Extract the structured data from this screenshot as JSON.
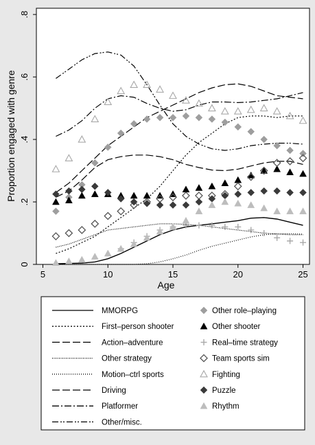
{
  "chart_data": {
    "type": "line",
    "xlabel": "Age",
    "ylabel": "Proportion engaged with genre",
    "xlim": [
      4.5,
      25.5
    ],
    "ylim": [
      0,
      0.82
    ],
    "xticks": [
      5,
      10,
      15,
      20,
      25
    ],
    "xtick_labels": [
      "5",
      "10",
      "15",
      "20",
      "25"
    ],
    "yticks": [
      0,
      0.2,
      0.4,
      0.6,
      0.8
    ],
    "ytick_labels": [
      "0",
      ".2",
      ".4",
      ".6",
      ".8"
    ],
    "grid": false,
    "legend_position": "bottom",
    "series": [
      {
        "name": "MMORPG",
        "kind": "line",
        "dash": "solid",
        "x": [
          6,
          7,
          8,
          9,
          10,
          11,
          12,
          13,
          14,
          15,
          16,
          17,
          18,
          19,
          20,
          21,
          22,
          23,
          24,
          25
        ],
        "y": [
          0.002,
          0.003,
          0.004,
          0.008,
          0.018,
          0.035,
          0.055,
          0.075,
          0.095,
          0.11,
          0.12,
          0.125,
          0.13,
          0.135,
          0.14,
          0.148,
          0.15,
          0.145,
          0.135,
          0.125
        ]
      },
      {
        "name": "First-person shooter",
        "kind": "line",
        "dash": "dotted",
        "x": [
          6,
          7,
          8,
          9,
          10,
          11,
          12,
          13,
          14,
          15,
          16,
          17,
          18,
          19,
          20,
          21,
          22,
          23,
          24,
          25
        ],
        "y": [
          0.035,
          0.05,
          0.07,
          0.09,
          0.12,
          0.15,
          0.18,
          0.21,
          0.25,
          0.3,
          0.35,
          0.39,
          0.42,
          0.45,
          0.47,
          0.475,
          0.475,
          0.47,
          0.475,
          0.475
        ]
      },
      {
        "name": "Action-adventure",
        "kind": "line",
        "dash": "longdash",
        "x": [
          6,
          7,
          8,
          9,
          10,
          11,
          12,
          13,
          14,
          15,
          16,
          17,
          18,
          19,
          20,
          21,
          22,
          23,
          24,
          25
        ],
        "y": [
          0.23,
          0.26,
          0.3,
          0.34,
          0.38,
          0.41,
          0.44,
          0.47,
          0.49,
          0.51,
          0.53,
          0.55,
          0.565,
          0.575,
          0.578,
          0.57,
          0.555,
          0.54,
          0.535,
          0.53
        ]
      },
      {
        "name": "Other strategy",
        "kind": "line",
        "dash": "fine-dotted",
        "x": [
          6,
          7,
          8,
          9,
          10,
          11,
          12,
          13,
          14,
          15,
          16,
          17,
          18,
          19,
          20,
          21,
          22,
          23,
          24,
          25
        ],
        "y": [
          0.055,
          0.065,
          0.08,
          0.095,
          0.11,
          0.115,
          0.12,
          0.125,
          0.13,
          0.13,
          0.128,
          0.125,
          0.12,
          0.115,
          0.11,
          0.105,
          0.1,
          0.097,
          0.095,
          0.095
        ]
      },
      {
        "name": "Motion–ctrl sports",
        "kind": "line",
        "dash": "sparse-dotted",
        "x": [
          6,
          7,
          8,
          9,
          10,
          11,
          12,
          13,
          14,
          15,
          16,
          17,
          18,
          19,
          20,
          21,
          22,
          23,
          24,
          25
        ],
        "y": [
          0,
          0,
          0,
          0,
          0,
          0,
          0,
          0.002,
          0.008,
          0.018,
          0.03,
          0.045,
          0.058,
          0.068,
          0.078,
          0.088,
          0.095,
          0.098,
          0.098,
          0.097
        ]
      },
      {
        "name": "Driving",
        "kind": "line",
        "dash": "longdash",
        "x": [
          6,
          7,
          8,
          9,
          10,
          11,
          12,
          13,
          14,
          15,
          16,
          17,
          18,
          19,
          20,
          21,
          22,
          23,
          24,
          25
        ],
        "y": [
          0.215,
          0.235,
          0.27,
          0.31,
          0.335,
          0.345,
          0.35,
          0.35,
          0.345,
          0.335,
          0.32,
          0.31,
          0.302,
          0.3,
          0.305,
          0.315,
          0.325,
          0.33,
          0.33,
          0.32
        ]
      },
      {
        "name": "Platformer",
        "kind": "line",
        "dash": "dashdot",
        "x": [
          6,
          7,
          8,
          9,
          10,
          11,
          12,
          13,
          14,
          15,
          16,
          17,
          18,
          19,
          20,
          21,
          22,
          23,
          24,
          25
        ],
        "y": [
          0.41,
          0.43,
          0.46,
          0.5,
          0.53,
          0.54,
          0.535,
          0.515,
          0.5,
          0.49,
          0.495,
          0.51,
          0.52,
          0.52,
          0.518,
          0.52,
          0.525,
          0.53,
          0.54,
          0.55
        ]
      },
      {
        "name": "Other/misc.",
        "kind": "line",
        "dash": "dashdotdot",
        "x": [
          6,
          7,
          8,
          9,
          10,
          11,
          12,
          13,
          14,
          15,
          16,
          17,
          18,
          19,
          20,
          21,
          22,
          23,
          24,
          25
        ],
        "y": [
          0.595,
          0.625,
          0.655,
          0.675,
          0.68,
          0.67,
          0.635,
          0.575,
          0.51,
          0.45,
          0.41,
          0.385,
          0.37,
          0.365,
          0.37,
          0.38,
          0.385,
          0.388,
          0.388,
          0.385
        ]
      },
      {
        "name": "Other role–playing",
        "kind": "marker",
        "marker": "diamond-filled",
        "color": "#9e9e9e",
        "x": [
          6,
          7,
          8,
          9,
          10,
          11,
          12,
          13,
          14,
          15,
          16,
          17,
          18,
          19,
          20,
          21,
          22,
          23,
          24,
          25
        ],
        "y": [
          0.17,
          0.215,
          0.255,
          0.325,
          0.375,
          0.42,
          0.45,
          0.465,
          0.47,
          0.47,
          0.475,
          0.47,
          0.465,
          0.455,
          0.44,
          0.425,
          0.4,
          0.38,
          0.365,
          0.355
        ]
      },
      {
        "name": "Other shooter",
        "kind": "marker",
        "marker": "triangle-filled",
        "color": "#000000",
        "x": [
          6,
          7,
          8,
          9,
          10,
          11,
          12,
          13,
          14,
          15,
          16,
          17,
          18,
          19,
          20,
          21,
          22,
          23,
          24,
          25
        ],
        "y": [
          0.2,
          0.205,
          0.22,
          0.225,
          0.225,
          0.22,
          0.22,
          0.22,
          0.22,
          0.225,
          0.24,
          0.245,
          0.25,
          0.26,
          0.27,
          0.285,
          0.3,
          0.305,
          0.295,
          0.29
        ]
      },
      {
        "name": "Real–time strategy",
        "kind": "marker",
        "marker": "plus",
        "color": "#a8a8a8",
        "x": [
          11,
          12,
          13,
          14,
          15,
          16,
          17,
          18,
          19,
          20,
          21,
          22,
          23,
          24,
          25
        ],
        "y": [
          0.05,
          0.07,
          0.09,
          0.11,
          0.12,
          0.125,
          0.125,
          0.125,
          0.12,
          0.12,
          0.11,
          0.1,
          0.085,
          0.075,
          0.07
        ]
      },
      {
        "name": "Team sports sim",
        "kind": "marker",
        "marker": "diamond-hollow",
        "color": "#555555",
        "x": [
          6,
          7,
          8,
          9,
          10,
          11,
          12,
          13,
          14,
          15,
          16,
          17,
          18,
          19,
          20,
          21,
          22,
          23,
          24,
          25
        ],
        "y": [
          0.09,
          0.1,
          0.11,
          0.13,
          0.155,
          0.17,
          0.19,
          0.2,
          0.21,
          0.215,
          0.22,
          0.22,
          0.22,
          0.225,
          0.25,
          0.28,
          0.3,
          0.325,
          0.33,
          0.34
        ]
      },
      {
        "name": "Fighting",
        "kind": "marker",
        "marker": "triangle-hollow",
        "color": "#a8a8a8",
        "x": [
          6,
          7,
          8,
          9,
          10,
          11,
          12,
          13,
          14,
          15,
          16,
          17,
          18,
          19,
          20,
          21,
          22,
          23,
          24,
          25
        ],
        "y": [
          0.305,
          0.34,
          0.4,
          0.465,
          0.52,
          0.555,
          0.575,
          0.575,
          0.56,
          0.54,
          0.525,
          0.515,
          0.5,
          0.49,
          0.49,
          0.495,
          0.5,
          0.49,
          0.475,
          0.46
        ]
      },
      {
        "name": "Puzzle",
        "kind": "marker",
        "marker": "diamond-filled",
        "color": "#3a3a3a",
        "x": [
          6,
          7,
          8,
          9,
          10,
          11,
          12,
          13,
          14,
          15,
          16,
          17,
          18,
          19,
          20,
          21,
          22,
          23,
          24,
          25
        ],
        "y": [
          0.225,
          0.235,
          0.24,
          0.25,
          0.23,
          0.21,
          0.2,
          0.195,
          0.19,
          0.19,
          0.19,
          0.2,
          0.21,
          0.22,
          0.225,
          0.23,
          0.235,
          0.235,
          0.23,
          0.23
        ]
      },
      {
        "name": "Rhythm",
        "kind": "marker",
        "marker": "triangle-filled",
        "color": "#bdbdbd",
        "x": [
          6,
          7,
          8,
          9,
          10,
          11,
          12,
          13,
          14,
          15,
          16,
          17,
          18,
          19,
          20,
          21,
          22,
          23,
          24,
          25
        ],
        "y": [
          0.005,
          0.01,
          0.015,
          0.025,
          0.035,
          0.05,
          0.065,
          0.085,
          0.105,
          0.12,
          0.14,
          0.17,
          0.19,
          0.2,
          0.195,
          0.19,
          0.18,
          0.17,
          0.17,
          0.17
        ]
      }
    ]
  },
  "legend": {
    "items": [
      {
        "label": "MMORPG"
      },
      {
        "label": "Other role–playing"
      },
      {
        "label": "First–person shooter"
      },
      {
        "label": "Other shooter"
      },
      {
        "label": "Action–adventure"
      },
      {
        "label": "Real–time strategy"
      },
      {
        "label": "Other strategy"
      },
      {
        "label": "Team sports sim"
      },
      {
        "label": "Motion–ctrl sports"
      },
      {
        "label": "Fighting"
      },
      {
        "label": "Driving"
      },
      {
        "label": "Puzzle"
      },
      {
        "label": "Platformer"
      },
      {
        "label": "Rhythm"
      },
      {
        "label": "Other/misc."
      }
    ]
  }
}
